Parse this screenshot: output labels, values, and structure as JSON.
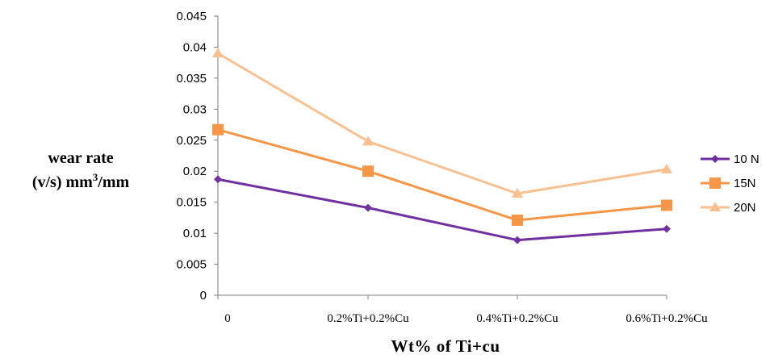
{
  "chart_data": {
    "type": "line",
    "categories": [
      "0",
      "0.2%Ti+0.2%Cu",
      "0.4%Ti+0.2%Cu",
      "0.6%Ti+0.2%Cu"
    ],
    "series": [
      {
        "name": "10 N",
        "values": [
          0.0187,
          0.0141,
          0.0089,
          0.0107
        ],
        "color": "#7030a0",
        "marker": "diamond"
      },
      {
        "name": "15N",
        "values": [
          0.0267,
          0.02,
          0.0121,
          0.0145
        ],
        "color": "#f79646",
        "marker": "square"
      },
      {
        "name": "20N",
        "values": [
          0.039,
          0.0248,
          0.0164,
          0.0203
        ],
        "color": "#fac090",
        "marker": "triangle"
      }
    ],
    "ylabel_line1": "wear rate",
    "ylabel_line2_prefix": "(v/s) mm",
    "ylabel_sup": "3",
    "ylabel_line2_suffix": "/mm",
    "xlabel": "Wt% of Ti+cu",
    "ylim": [
      0,
      0.045
    ],
    "yticks": [
      "0",
      "0.005",
      "0.01",
      "0.015",
      "0.02",
      "0.025",
      "0.03",
      "0.035",
      "0.04",
      "0.045"
    ],
    "grid": false,
    "legend_position": "right"
  }
}
